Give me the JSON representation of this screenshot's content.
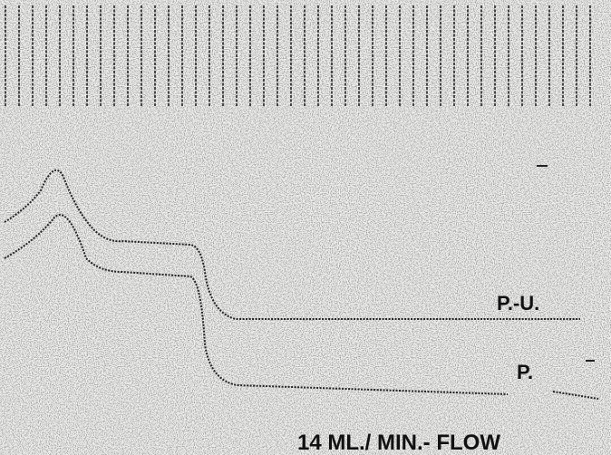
{
  "labels": {
    "upper_trace": "P.-U.",
    "lower_trace": "P.",
    "caption": "14 ML./ MIN.- FLOW"
  }
}
